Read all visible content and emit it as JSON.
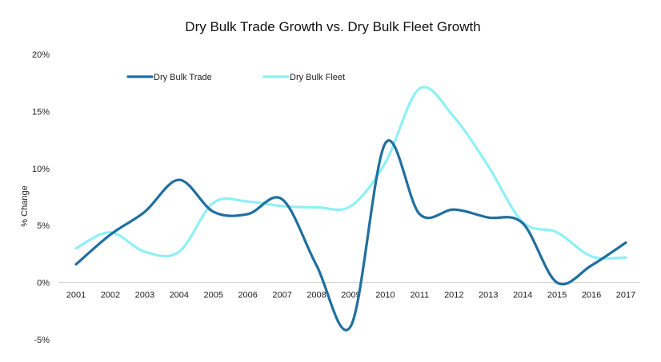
{
  "chart_data": {
    "type": "line",
    "title": "Dry Bulk Trade Growth vs. Dry Bulk Fleet Growth",
    "xlabel": "",
    "ylabel": "% Change",
    "ylim": [
      -5,
      20
    ],
    "yticks": [
      -5,
      0,
      5,
      10,
      15,
      20
    ],
    "ytick_labels": [
      "-5%",
      "0%",
      "5%",
      "10%",
      "15%",
      "20%"
    ],
    "grid": false,
    "legend_position": "top-left",
    "categories": [
      "2001",
      "2002",
      "2003",
      "2004",
      "2005",
      "2006",
      "2007",
      "2008",
      "2009",
      "2010",
      "2011",
      "2012",
      "2013",
      "2014",
      "2015",
      "2016",
      "2017"
    ],
    "series": [
      {
        "name": "Dry Bulk Trade",
        "color": "#1f6f9f",
        "values": [
          1.6,
          4.2,
          6.2,
          9.0,
          6.2,
          6.0,
          7.3,
          1.5,
          -3.8,
          12.2,
          6.0,
          6.4,
          5.7,
          5.2,
          0.0,
          1.5,
          3.5
        ]
      },
      {
        "name": "Dry Bulk Fleet",
        "color": "#8ef0f5",
        "values": [
          3.0,
          4.4,
          2.7,
          2.7,
          7.0,
          7.1,
          6.7,
          6.6,
          6.7,
          10.5,
          17.0,
          14.5,
          10.2,
          5.3,
          4.4,
          2.3,
          2.2
        ]
      }
    ]
  }
}
